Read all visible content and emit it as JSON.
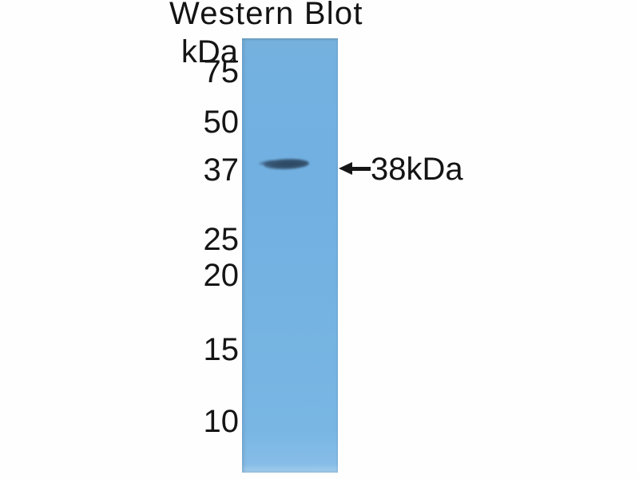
{
  "figure": {
    "title": "Western Blot",
    "unit_label": "kDa",
    "markers": [
      {
        "label": "75",
        "kda": 75
      },
      {
        "label": "50",
        "kda": 50
      },
      {
        "label": "37",
        "kda": 37
      },
      {
        "label": "25",
        "kda": 25
      },
      {
        "label": "20",
        "kda": 20
      },
      {
        "label": "15",
        "kda": 15
      },
      {
        "label": "10",
        "kda": 10
      }
    ],
    "band_annotation": {
      "label": "38kDa"
    }
  },
  "colors": {
    "lane_blue": "#73b1e1",
    "band_dark": "#33506c",
    "text": "#141414",
    "background": "#fefefe"
  },
  "chart_data": {
    "type": "western-blot",
    "title": "Western Blot",
    "unit": "kDa",
    "ladder_markers_kda": [
      75,
      50,
      37,
      25,
      20,
      15,
      10
    ],
    "lanes": 1,
    "bands": [
      {
        "lane": 1,
        "approx_kda": 38,
        "annotation": "38kDa",
        "nearest_marker_kda": 37,
        "intensity": "strong"
      }
    ],
    "legend_position": "none",
    "grid": false,
    "lane_color": "#73b1e1",
    "band_color": "#33506c"
  }
}
